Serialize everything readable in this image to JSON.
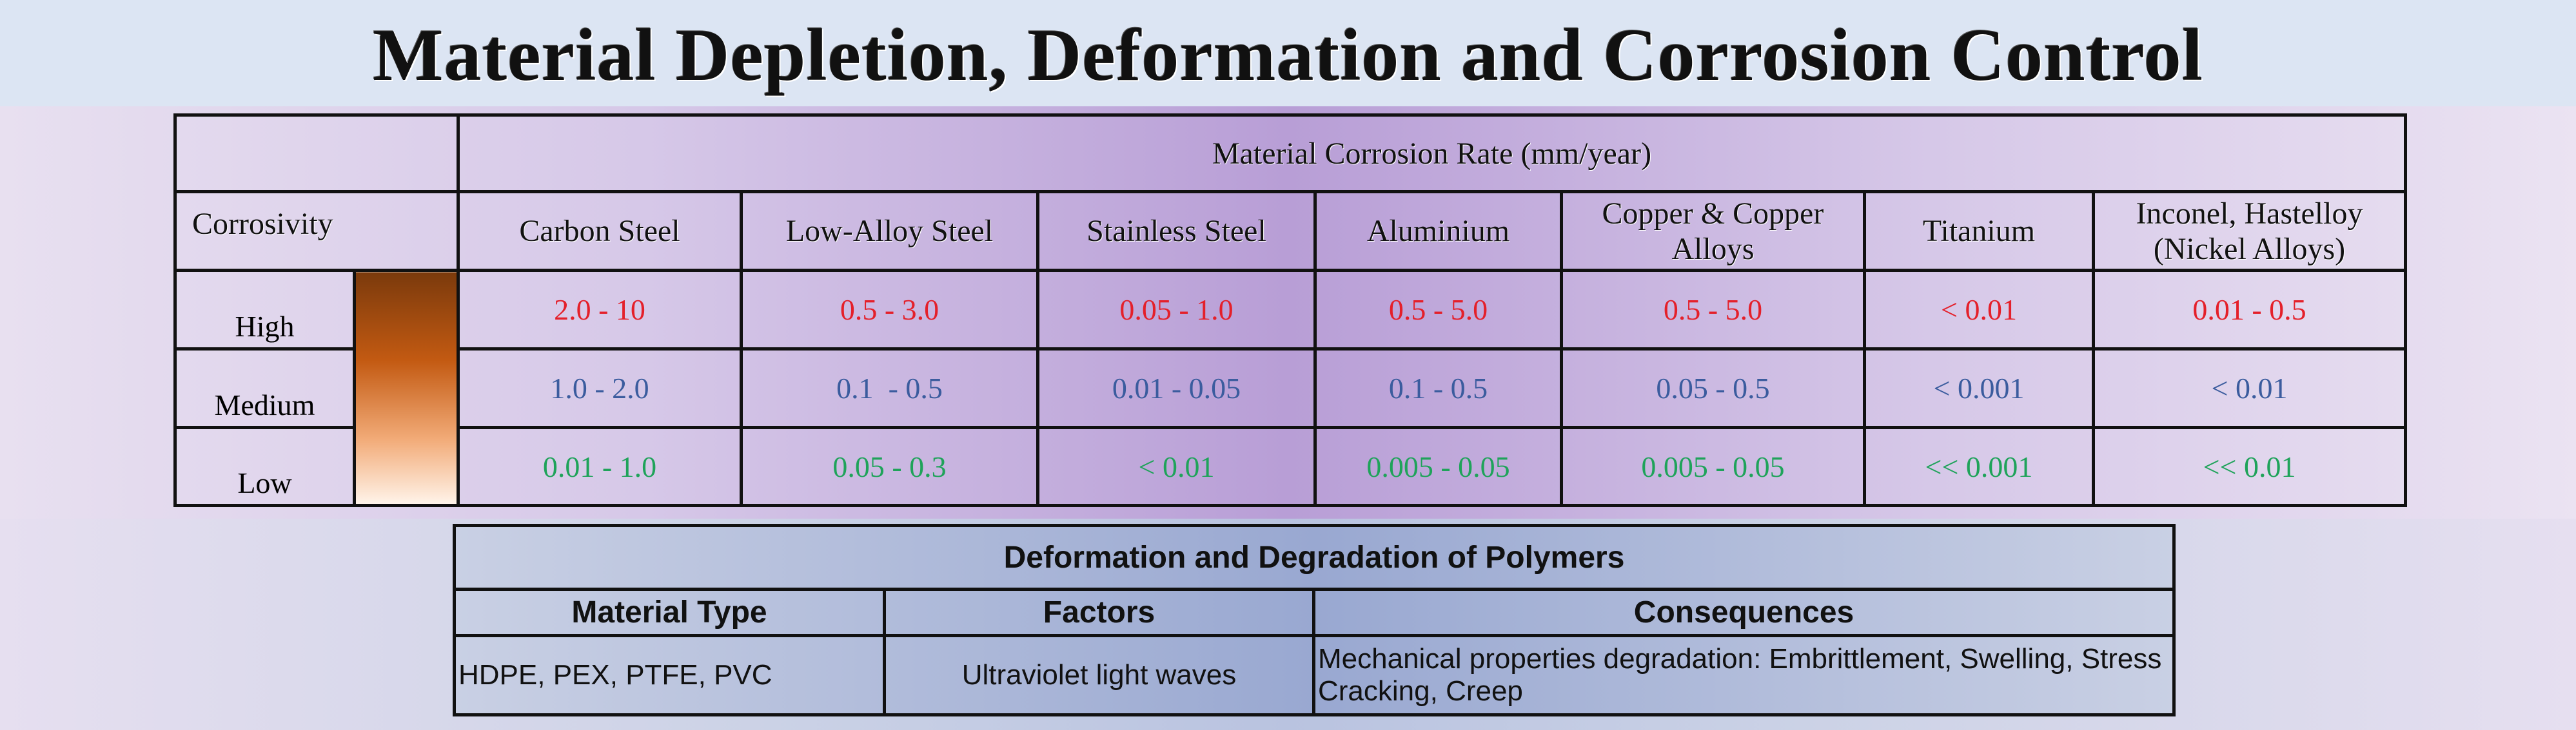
{
  "title": "Material Depletion, Deformation and Corrosion Control",
  "corrosion_table": {
    "header": "Material Corrosion Rate (mm/year)",
    "corrosivity_label": "Corrosivity",
    "columns": [
      "Carbon Steel",
      "Low-Alloy Steel",
      "Stainless Steel",
      "Aluminium",
      "Copper & Copper Alloys",
      "Titanium",
      "Inconel, Hastelloy (Nickel Alloys)"
    ],
    "rows": [
      {
        "level": "High",
        "color": "#e4202a",
        "values": [
          "2.0 - 10",
          "0.5 - 3.0",
          "0.05 - 1.0",
          "0.5 - 5.0",
          "0.5 - 5.0",
          "< 0.01",
          "0.01 - 0.5"
        ]
      },
      {
        "level": "Medium",
        "color": "#3b5c9e",
        "values": [
          "1.0 - 2.0",
          "0.1  - 0.5",
          "0.01 - 0.05",
          "0.1 - 0.5",
          "0.05 - 0.5",
          "< 0.001",
          "< 0.01"
        ]
      },
      {
        "level": "Low",
        "color": "#1fa35a",
        "values": [
          "0.01 - 1.0",
          "0.05 - 0.3",
          "< 0.01",
          "0.005 - 0.05",
          "0.005 - 0.05",
          "<< 0.001",
          "<< 0.01"
        ]
      }
    ]
  },
  "polymer_table": {
    "title": "Deformation and Degradation of Polymers",
    "headers": [
      "Material Type",
      "Factors",
      "Consequences"
    ],
    "row": [
      "HDPE, PEX, PTFE, PVC",
      "Ultraviolet light waves",
      "Mechanical properties degradation: Embrittlement, Swelling, Stress Cracking, Creep"
    ]
  }
}
